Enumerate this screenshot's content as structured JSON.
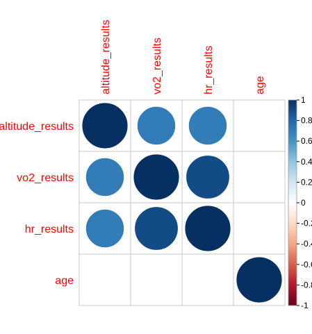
{
  "chart_data": {
    "type": "heatmap",
    "method": "circle",
    "variables": [
      "altitude_results",
      "vo2_results",
      "hr_results",
      "age"
    ],
    "matrix": [
      [
        1.0,
        0.7,
        0.7,
        null
      ],
      [
        0.7,
        1.0,
        0.9,
        null
      ],
      [
        0.7,
        0.9,
        1.0,
        null
      ],
      [
        null,
        null,
        null,
        1.0
      ]
    ],
    "colorbar": {
      "ticks": [
        "1",
        "0.8",
        "0.6",
        "0.4",
        "0.2",
        "0",
        "-0.2",
        "-0.4",
        "-0.6",
        "-0.8",
        "-1"
      ],
      "range": [
        -1,
        1
      ],
      "colors": [
        "#67001F",
        "#B2182B",
        "#D6604D",
        "#F4A582",
        "#FDDBC7",
        "#FFFFFF",
        "#D1E5F0",
        "#92C5DE",
        "#4393C3",
        "#2166AC",
        "#053061"
      ]
    },
    "label_color": "#ff0000",
    "grid": true
  }
}
